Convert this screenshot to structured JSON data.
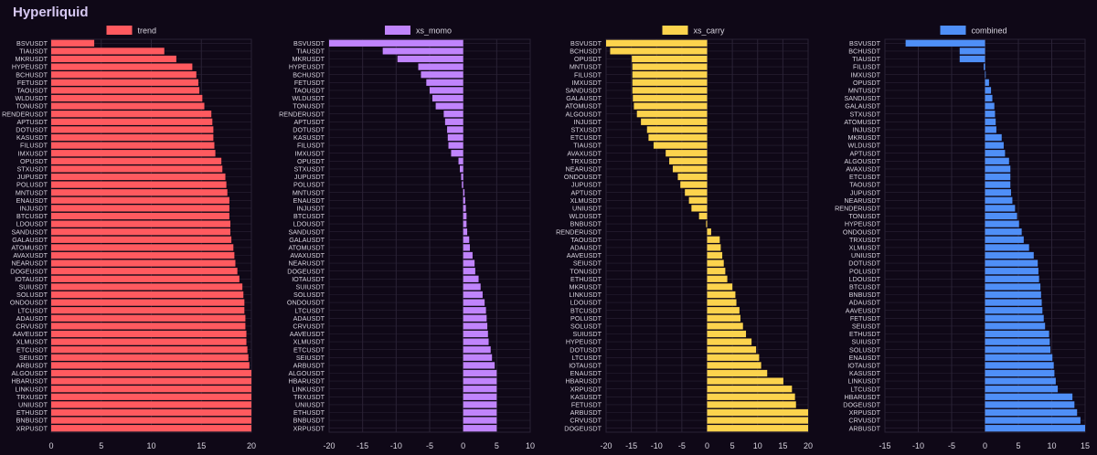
{
  "page_title": "Hyperliquid",
  "colors": {
    "background": "#0f0817",
    "grid": "#2a2236",
    "text": "#d8d4df"
  },
  "chart_data": [
    {
      "type": "bar",
      "orientation": "horizontal",
      "legend": "trend",
      "color": "#ff5a5f",
      "xlim": [
        0,
        20
      ],
      "xticks": [
        0,
        5,
        10,
        15,
        20
      ],
      "categories": [
        "BSVUSDT",
        "TIAUSDT",
        "MKRUSDT",
        "HYPEUSDT",
        "BCHUSDT",
        "FETUSDT",
        "TAOUSDT",
        "WLDUSDT",
        "TONUSDT",
        "RENDERUSDT",
        "APTUSDT",
        "DOTUSDT",
        "KASUSDT",
        "FILUSDT",
        "IMXUSDT",
        "OPUSDT",
        "STXUSDT",
        "JUPUSDT",
        "POLUSDT",
        "MNTUSDT",
        "ENAUSDT",
        "INJUSDT",
        "BTCUSDT",
        "LDOUSDT",
        "SANDUSDT",
        "GALAUSDT",
        "ATOMUSDT",
        "AVAXUSDT",
        "NEARUSDT",
        "DOGEUSDT",
        "IOTAUSDT",
        "SUIUSDT",
        "SOLUSDT",
        "ONDOUSDT",
        "LTCUSDT",
        "ADAUSDT",
        "CRVUSDT",
        "AAVEUSDT",
        "XLMUSDT",
        "ETCUSDT",
        "SEIUSDT",
        "ARBUSDT",
        "ALGOUSDT",
        "HBARUSDT",
        "LINKUSDT",
        "TRXUSDT",
        "UNIUSDT",
        "ETHUSDT",
        "BNBUSDT",
        "XRPUSDT"
      ],
      "values": [
        4.3,
        11.3,
        12.5,
        14.1,
        14.5,
        14.7,
        14.8,
        15.1,
        15.3,
        16.0,
        16.1,
        16.2,
        16.2,
        16.3,
        16.4,
        17.0,
        17.1,
        17.4,
        17.5,
        17.6,
        17.8,
        17.8,
        17.8,
        17.9,
        17.9,
        18.0,
        18.2,
        18.3,
        18.4,
        18.6,
        18.8,
        19.1,
        19.2,
        19.3,
        19.3,
        19.4,
        19.4,
        19.5,
        19.5,
        19.6,
        19.7,
        19.8,
        20.0,
        20.0,
        20.0,
        20.0,
        20.0,
        20.0,
        20.0,
        20.0
      ]
    },
    {
      "type": "bar",
      "orientation": "horizontal",
      "legend": "xs_momo",
      "color": "#c084fc",
      "xlim": [
        -20,
        10
      ],
      "xticks": [
        -20,
        -15,
        -10,
        -5,
        0,
        5,
        10
      ],
      "categories": [
        "BSVUSDT",
        "TIAUSDT",
        "MKRUSDT",
        "HYPEUSDT",
        "BCHUSDT",
        "FETUSDT",
        "TAOUSDT",
        "WLDUSDT",
        "TONUSDT",
        "RENDERUSDT",
        "APTUSDT",
        "DOTUSDT",
        "KASUSDT",
        "FILUSDT",
        "IMXUSDT",
        "OPUSDT",
        "STXUSDT",
        "JUPUSDT",
        "POLUSDT",
        "MNTUSDT",
        "ENAUSDT",
        "INJUSDT",
        "BTCUSDT",
        "LDOUSDT",
        "SANDUSDT",
        "GALAUSDT",
        "ATOMUSDT",
        "AVAXUSDT",
        "NEARUSDT",
        "DOGEUSDT",
        "IOTAUSDT",
        "SUIUSDT",
        "SOLUSDT",
        "ONDOUSDT",
        "LTCUSDT",
        "ADAUSDT",
        "CRVUSDT",
        "AAVEUSDT",
        "XLMUSDT",
        "ETCUSDT",
        "SEIUSDT",
        "ARBUSDT",
        "ALGOUSDT",
        "HBARUSDT",
        "LINKUSDT",
        "TRXUSDT",
        "UNIUSDT",
        "ETHUSDT",
        "BNBUSDT",
        "XRPUSDT"
      ],
      "values": [
        -20.0,
        -12.0,
        -9.8,
        -6.7,
        -6.3,
        -5.5,
        -5.0,
        -4.6,
        -4.1,
        -2.9,
        -2.7,
        -2.4,
        -2.3,
        -2.2,
        -1.8,
        -0.7,
        -0.5,
        -0.3,
        -0.2,
        0.2,
        0.3,
        0.4,
        0.5,
        0.5,
        0.6,
        0.9,
        1.0,
        1.4,
        1.7,
        1.8,
        2.3,
        2.6,
        2.9,
        3.2,
        3.4,
        3.5,
        3.6,
        3.7,
        3.8,
        4.1,
        4.3,
        4.7,
        5.0,
        5.0,
        5.0,
        5.0,
        5.0,
        5.0,
        5.0,
        5.0
      ]
    },
    {
      "type": "bar",
      "orientation": "horizontal",
      "legend": "xs_carry",
      "color": "#fcd34d",
      "xlim": [
        -20,
        20
      ],
      "xticks": [
        -20,
        -15,
        -10,
        -5,
        0,
        5,
        10,
        15,
        20
      ],
      "categories": [
        "BSVUSDT",
        "BCHUSDT",
        "OPUSDT",
        "MNTUSDT",
        "FILUSDT",
        "IMXUSDT",
        "SANDUSDT",
        "GALAUSDT",
        "ATOMUSDT",
        "ALGOUSDT",
        "INJUSDT",
        "STXUSDT",
        "ETCUSDT",
        "TIAUSDT",
        "AVAXUSDT",
        "TRXUSDT",
        "NEARUSDT",
        "ONDOUSDT",
        "JUPUSDT",
        "APTUSDT",
        "XLMUSDT",
        "UNIUSDT",
        "WLDUSDT",
        "BNBUSDT",
        "RENDERUSDT",
        "TAOUSDT",
        "ADAUSDT",
        "AAVEUSDT",
        "SEIUSDT",
        "TONUSDT",
        "ETHUSDT",
        "MKRUSDT",
        "LINKUSDT",
        "LDOUSDT",
        "BTCUSDT",
        "POLUSDT",
        "SOLUSDT",
        "SUIUSDT",
        "HYPEUSDT",
        "DOTUSDT",
        "LTCUSDT",
        "IOTAUSDT",
        "ENAUSDT",
        "HBARUSDT",
        "XRPUSDT",
        "KASUSDT",
        "FETUSDT",
        "ARBUSDT",
        "CRVUSDT",
        "DOGEUSDT"
      ],
      "values": [
        -20.0,
        -19.2,
        -14.9,
        -14.8,
        -14.8,
        -14.8,
        -14.8,
        -14.7,
        -14.5,
        -13.9,
        -13.1,
        -11.9,
        -11.6,
        -10.6,
        -8.2,
        -7.5,
        -6.8,
        -5.8,
        -5.3,
        -4.4,
        -3.6,
        -3.1,
        -1.6,
        -0.2,
        0.8,
        2.5,
        2.7,
        3.0,
        3.3,
        3.6,
        4.0,
        5.0,
        5.6,
        5.8,
        6.4,
        6.6,
        7.1,
        7.7,
        8.8,
        9.7,
        10.3,
        10.7,
        11.9,
        15.1,
        16.8,
        17.4,
        17.6,
        20.0,
        20.0,
        20.0
      ]
    },
    {
      "type": "bar",
      "orientation": "horizontal",
      "legend": "combined",
      "color": "#4f8ff7",
      "xlim": [
        -15,
        15
      ],
      "xticks": [
        -15,
        -10,
        -5,
        0,
        5,
        10,
        15
      ],
      "categories": [
        "BSVUSDT",
        "BCHUSDT",
        "TIAUSDT",
        "FILUSDT",
        "IMXUSDT",
        "OPUSDT",
        "MNTUSDT",
        "SANDUSDT",
        "GALAUSDT",
        "STXUSDT",
        "ATOMUSDT",
        "INJUSDT",
        "MKRUSDT",
        "WLDUSDT",
        "APTUSDT",
        "ALGOUSDT",
        "AVAXUSDT",
        "ETCUSDT",
        "TAOUSDT",
        "JUPUSDT",
        "NEARUSDT",
        "RENDERUSDT",
        "TONUSDT",
        "HYPEUSDT",
        "ONDOUSDT",
        "TRXUSDT",
        "XLMUSDT",
        "UNIUSDT",
        "DOTUSDT",
        "POLUSDT",
        "LDOUSDT",
        "BTCUSDT",
        "BNBUSDT",
        "ADAUSDT",
        "AAVEUSDT",
        "FETUSDT",
        "SEIUSDT",
        "ETHUSDT",
        "SUIUSDT",
        "SOLUSDT",
        "ENAUSDT",
        "IOTAUSDT",
        "KASUSDT",
        "LINKUSDT",
        "LTCUSDT",
        "HBARUSDT",
        "DOGEUSDT",
        "XRPUSDT",
        "CRVUSDT",
        "ARBUSDT"
      ],
      "values": [
        -11.9,
        -3.8,
        -3.8,
        -0.2,
        0.1,
        0.6,
        0.9,
        1.1,
        1.4,
        1.5,
        1.6,
        1.7,
        2.5,
        2.8,
        3.0,
        3.6,
        3.8,
        3.8,
        3.8,
        3.9,
        4.1,
        4.5,
        4.8,
        5.1,
        5.5,
        5.8,
        6.6,
        7.3,
        7.9,
        8.0,
        8.1,
        8.3,
        8.4,
        8.5,
        8.6,
        8.8,
        9.0,
        9.6,
        9.7,
        9.8,
        10.1,
        10.3,
        10.4,
        10.6,
        10.9,
        13.1,
        13.4,
        13.8,
        14.3,
        15.0
      ]
    }
  ]
}
